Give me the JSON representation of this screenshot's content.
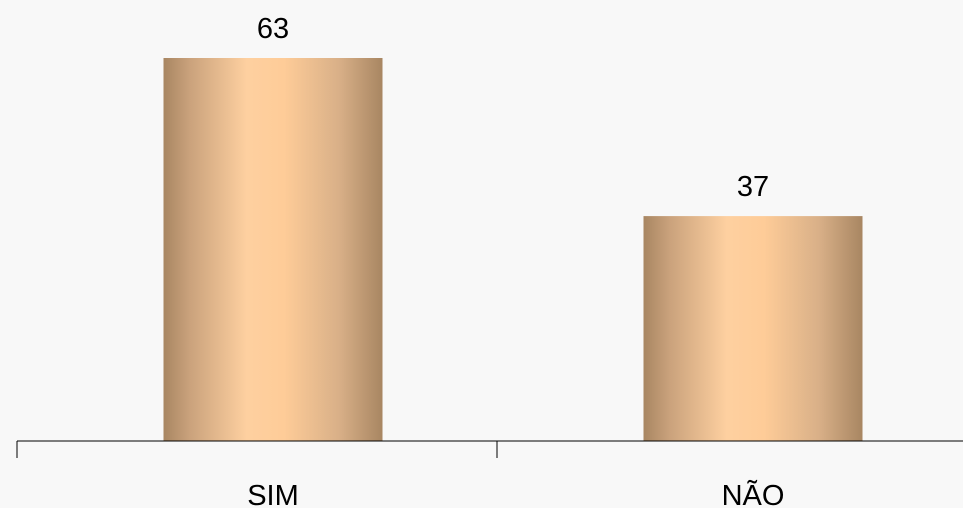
{
  "chart_data": {
    "type": "bar",
    "categories": [
      "SIM",
      "NÃO"
    ],
    "values": [
      63,
      37
    ],
    "data_labels": [
      "63",
      "37"
    ],
    "title": "",
    "xlabel": "",
    "ylabel": "",
    "ylim": [
      0,
      65
    ],
    "grid": false,
    "legend": "none"
  },
  "colors": {
    "background": "#f8f8f8",
    "bar_edge_dark": "#a88662",
    "bar_mid_light": "#fecc98",
    "bar_highlight": "#fed4a8",
    "axis": "#000000",
    "text": "#000000"
  }
}
